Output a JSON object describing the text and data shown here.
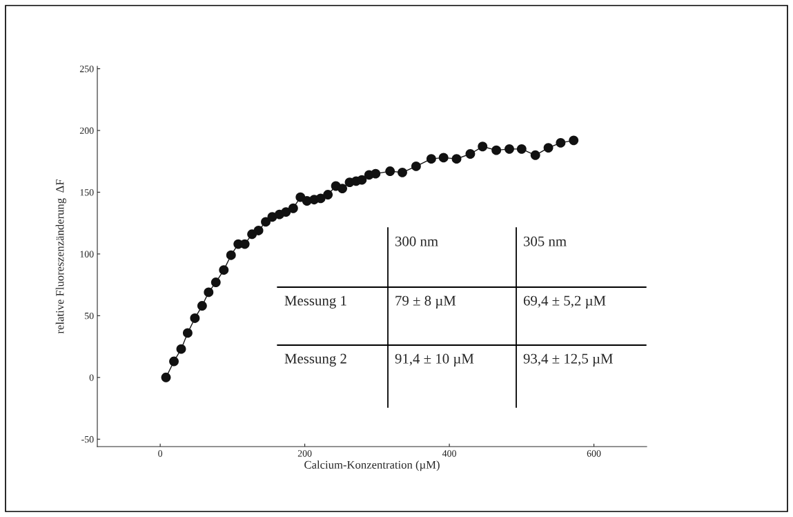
{
  "chart_data": {
    "type": "line",
    "xlabel": "Calcium-Konzentration (µM)",
    "ylabel": "relative Fluoreszenzänderung  ΔF",
    "x": [
      8,
      19,
      29,
      38,
      48,
      58,
      67,
      77,
      88,
      98,
      108,
      117,
      127,
      136,
      146,
      155,
      165,
      174,
      184,
      194,
      203,
      213,
      222,
      232,
      243,
      252,
      262,
      271,
      279,
      289,
      298,
      318,
      335,
      354,
      375,
      392,
      410,
      429,
      446,
      465,
      483,
      500,
      519,
      537,
      554,
      572
    ],
    "series": [
      {
        "color": "#111111",
        "values": [
          0,
          13,
          23,
          36,
          48,
          58,
          69,
          77,
          87,
          99,
          108,
          108,
          116,
          119,
          126,
          130,
          132,
          134,
          137,
          146,
          143,
          144,
          145,
          148,
          155,
          153,
          158,
          159,
          160,
          164,
          165,
          167,
          166,
          171,
          177,
          178,
          177,
          181,
          187,
          184,
          185,
          185,
          180,
          186,
          190,
          192
        ]
      }
    ],
    "marker": "circle",
    "line_style": "solid",
    "xlim": [
      -87,
      673
    ],
    "ylim": [
      -56,
      252
    ],
    "xticks": [
      0,
      200,
      400,
      600
    ],
    "yticks": [
      -50,
      0,
      50,
      100,
      150,
      200,
      250
    ],
    "annotations": [
      "300 nm",
      "305 nm",
      "Messung 1",
      "79 ± 8 µM",
      "69,4 ± 5,2 µM",
      "Messung 2",
      "91,4 ± 10 µM",
      "93,4 ± 12,5 µM"
    ]
  }
}
